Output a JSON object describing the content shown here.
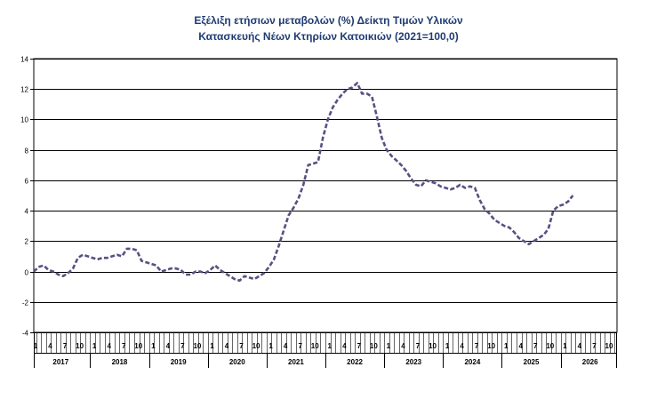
{
  "chart_data": {
    "type": "line",
    "title": "Εξέλιξη ετήσιων μεταβολών (%) Δείκτη Τιμών Υλικών",
    "subtitle": "Κατασκευής Νέων Κτηρίων Κατοικιών (2021=100,0)",
    "ylim": [
      -4,
      14
    ],
    "yticks": [
      "14",
      "12",
      "10",
      "8",
      "6",
      "4",
      "2",
      "0",
      "-2",
      "-4"
    ],
    "ytick_values": [
      14,
      12,
      10,
      8,
      6,
      4,
      2,
      0,
      -2,
      -4
    ],
    "grid": true,
    "month_labels": [
      "1",
      "4",
      "7",
      "10"
    ],
    "years": [
      "2017",
      "2018",
      "2019",
      "2020",
      "2021",
      "2022",
      "2023",
      "2024",
      "2025",
      "2026"
    ],
    "series": [
      {
        "color": "#5b4f82",
        "style": "dashed",
        "start": "2017-01",
        "values": [
          0.0,
          0.3,
          0.4,
          0.1,
          0.0,
          -0.2,
          -0.3,
          -0.1,
          0.2,
          0.9,
          1.1,
          1.0,
          0.9,
          0.8,
          0.9,
          0.9,
          1.0,
          1.1,
          1.0,
          1.5,
          1.5,
          1.4,
          0.7,
          0.6,
          0.5,
          0.4,
          0.0,
          0.1,
          0.2,
          0.2,
          0.1,
          -0.2,
          -0.2,
          0.0,
          0.0,
          -0.1,
          0.1,
          0.4,
          0.1,
          -0.1,
          -0.3,
          -0.5,
          -0.6,
          -0.3,
          -0.4,
          -0.5,
          -0.3,
          -0.1,
          0.3,
          0.8,
          1.7,
          2.7,
          3.7,
          4.2,
          4.8,
          5.7,
          7.0,
          7.1,
          7.2,
          8.8,
          10.0,
          10.8,
          11.3,
          11.7,
          12.0,
          12.1,
          12.4,
          11.7,
          11.7,
          11.5,
          10.2,
          8.8,
          8.0,
          7.6,
          7.3,
          7.0,
          6.6,
          6.1,
          5.7,
          5.6,
          6.0,
          5.9,
          5.8,
          5.6,
          5.5,
          5.4,
          5.5,
          5.7,
          5.5,
          5.6,
          5.5,
          4.7,
          4.1,
          3.8,
          3.4,
          3.2,
          3.0,
          2.9,
          2.6,
          2.2,
          2.0,
          1.8,
          2.0,
          2.2,
          2.4,
          2.8,
          4.0,
          4.3,
          4.4,
          4.6,
          5.0
        ]
      }
    ]
  }
}
